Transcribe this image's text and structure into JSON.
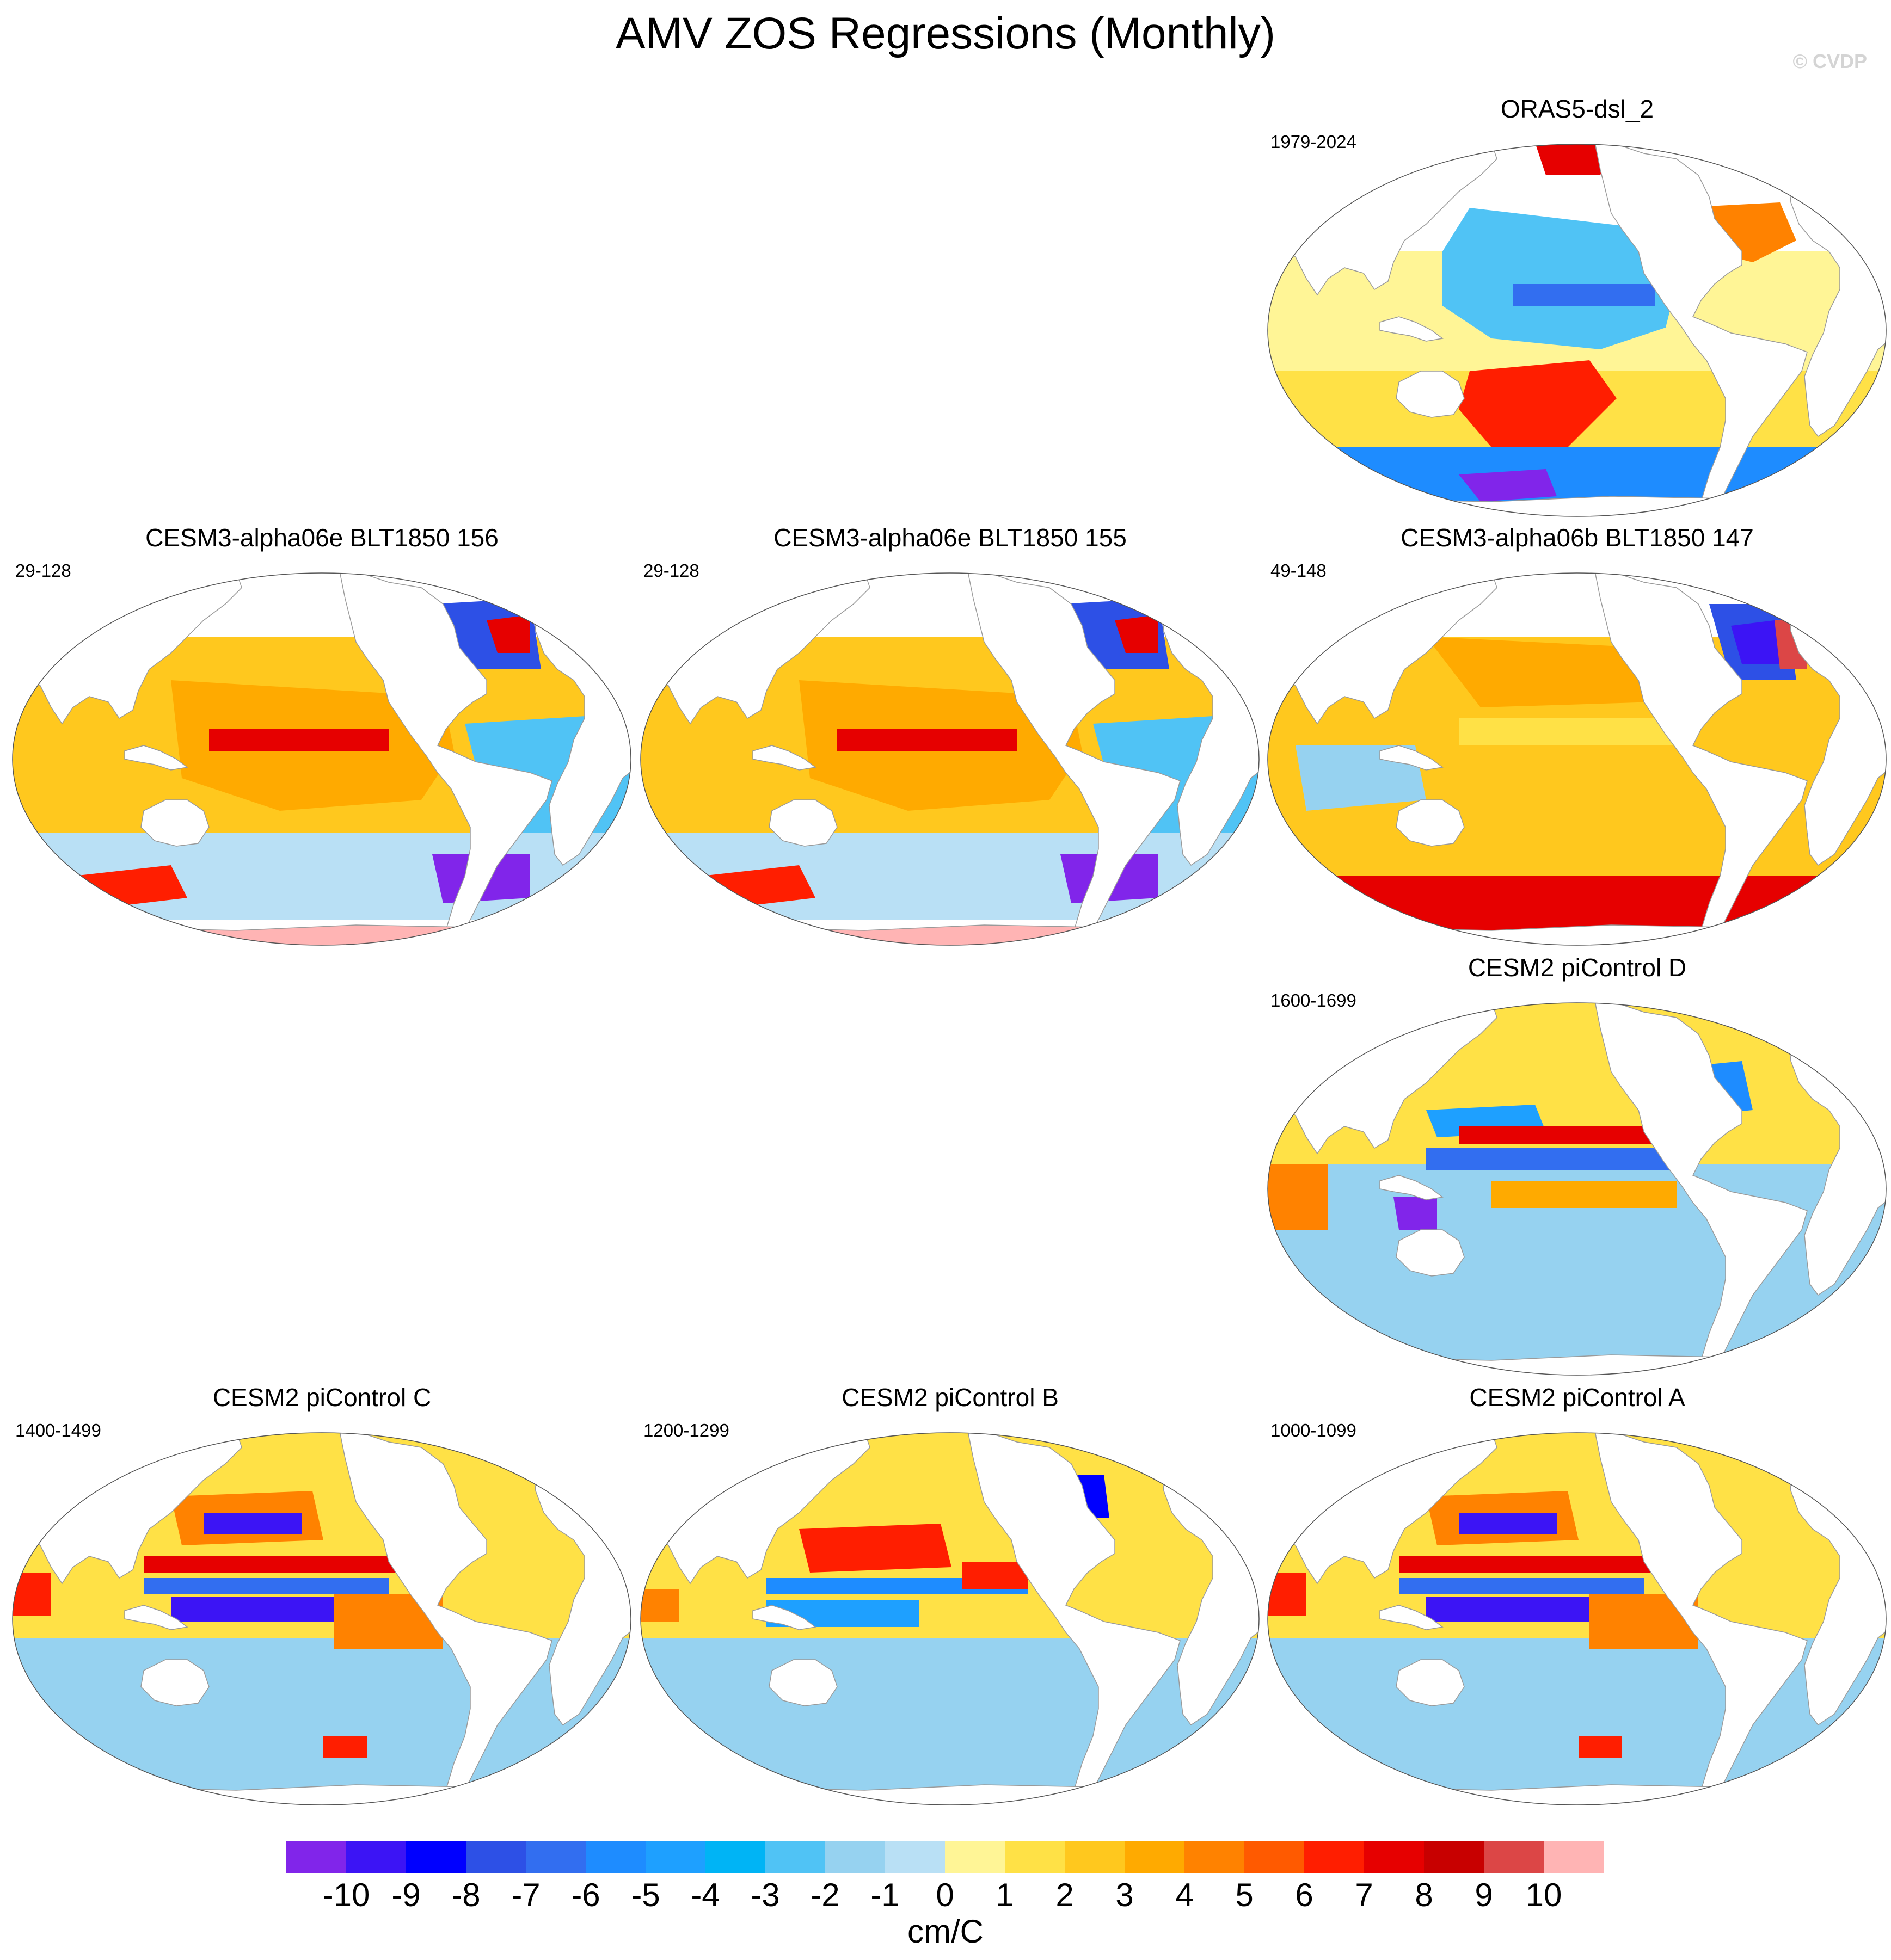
{
  "title": "AMV ZOS Regressions (Monthly)",
  "credit": "© CVDP",
  "units": "cm/C",
  "colorbar": {
    "colors": [
      "#8125ea",
      "#3c14f5",
      "#0000ff",
      "#2d50e6",
      "#326ef0",
      "#1e8cff",
      "#1ea0ff",
      "#00b4f5",
      "#50c3f5",
      "#96d2f0",
      "#b9e0f5",
      "#fff596",
      "#ffe146",
      "#ffc81e",
      "#ffaa00",
      "#ff8200",
      "#ff5a00",
      "#ff1e00",
      "#e60000",
      "#c80000",
      "#dc4646",
      "#ffb4b4"
    ],
    "labels": [
      "-10",
      "-9",
      "-8",
      "-7",
      "-6",
      "-5",
      "-4",
      "-3",
      "-2",
      "-1",
      "0",
      "1",
      "2",
      "3",
      "4",
      "5",
      "6",
      "7",
      "8",
      "9",
      "10"
    ]
  },
  "panels": [
    {
      "id": "oras5",
      "title": "ORAS5-dsl_2",
      "period": "1979-2024",
      "style": "obs"
    },
    {
      "id": "e156",
      "title": "CESM3-alpha06e BLT1850 156",
      "period": "29-128",
      "style": "cesm3"
    },
    {
      "id": "e155",
      "title": "CESM3-alpha06e BLT1850 155",
      "period": "29-128",
      "style": "cesm3"
    },
    {
      "id": "b147",
      "title": "CESM3-alpha06b BLT1850 147",
      "period": "49-148",
      "style": "cesm3b"
    },
    {
      "id": "pid",
      "title": "CESM2 piControl D",
      "period": "1600-1699",
      "style": "cesm2d"
    },
    {
      "id": "pic",
      "title": "CESM2 piControl C",
      "period": "1400-1499",
      "style": "cesm2"
    },
    {
      "id": "pib",
      "title": "CESM2 piControl B",
      "period": "1200-1299",
      "style": "cesm2b"
    },
    {
      "id": "pia",
      "title": "CESM2 piControl A",
      "period": "1000-1099",
      "style": "cesm2"
    }
  ]
}
